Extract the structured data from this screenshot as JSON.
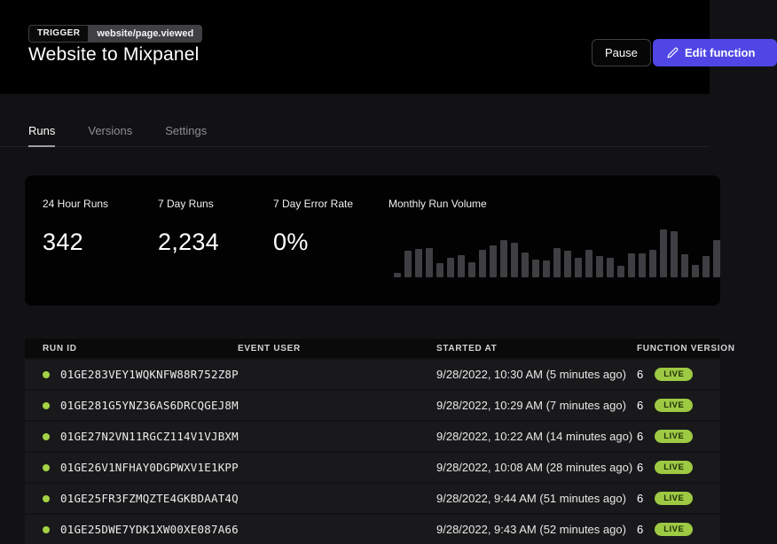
{
  "header": {
    "trigger_label": "TRIGGER",
    "trigger_event": "website/page.viewed",
    "title": "Website to Mixpanel",
    "pause_label": "Pause",
    "edit_label": "Edit function"
  },
  "tabs": [
    {
      "label": "Runs",
      "active": true
    },
    {
      "label": "Versions",
      "active": false
    },
    {
      "label": "Settings",
      "active": false
    }
  ],
  "stats": [
    {
      "label": "24 Hour Runs",
      "value": "342"
    },
    {
      "label": "7 Day Runs",
      "value": "2,234"
    },
    {
      "label": "7 Day Error Rate",
      "value": "0%"
    }
  ],
  "chart_data": {
    "type": "bar",
    "title": "Monthly Run Volume",
    "xlabel": "",
    "ylabel": "",
    "axis_labels_visible": false,
    "grid": false,
    "legend": "none",
    "values_unit": "relative height percent (no axis labels shown)",
    "values": [
      8,
      51,
      56,
      57,
      28,
      38,
      43,
      29,
      54,
      62,
      73,
      67,
      49,
      34,
      32,
      57,
      51,
      38,
      53,
      41,
      38,
      23,
      46,
      46,
      54,
      93,
      90,
      44,
      25,
      42,
      72
    ],
    "ylim": [
      0,
      100
    ],
    "bar_color": "#3f3f43"
  },
  "table": {
    "columns": [
      "RUN ID",
      "EVENT USER",
      "STARTED AT",
      "FUNCTION VERSION"
    ],
    "rows": [
      {
        "run_id": "01GE283VEY1WQKNFW88R752Z8P",
        "event_user": "",
        "started_at": "9/28/2022, 10:30 AM (5 minutes ago)",
        "version": "6",
        "status": "LIVE"
      },
      {
        "run_id": "01GE281G5YNZ36AS6DRCQGEJ8M",
        "event_user": "",
        "started_at": "9/28/2022, 10:29 AM (7 minutes ago)",
        "version": "6",
        "status": "LIVE"
      },
      {
        "run_id": "01GE27N2VN11RGCZ114V1VJBXM",
        "event_user": "",
        "started_at": "9/28/2022, 10:22 AM (14 minutes ago)",
        "version": "6",
        "status": "LIVE"
      },
      {
        "run_id": "01GE26V1NFHAY0DGPWXV1E1KPP",
        "event_user": "",
        "started_at": "9/28/2022, 10:08 AM (28 minutes ago)",
        "version": "6",
        "status": "LIVE"
      },
      {
        "run_id": "01GE25FR3FZMQZTE4GKBDAAT4Q",
        "event_user": "",
        "started_at": "9/28/2022, 9:44 AM (51 minutes ago)",
        "version": "6",
        "status": "LIVE"
      },
      {
        "run_id": "01GE25DWE7YDK1XW00XE087A66",
        "event_user": "",
        "started_at": "9/28/2022, 9:43 AM (52 minutes ago)",
        "version": "6",
        "status": "LIVE"
      }
    ]
  },
  "colors": {
    "accent_indigo": "#4f46e5",
    "live_green": "#9dc943",
    "status_dot_green": "#a5d245",
    "header_bg": "#000000",
    "body_bg": "#121214",
    "card_bg": "#020203",
    "row_bg": "#19191b",
    "bar_gray": "#3f3f43"
  }
}
